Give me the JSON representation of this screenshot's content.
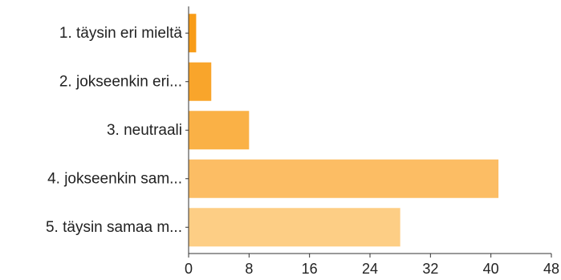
{
  "chart_data": {
    "type": "bar",
    "orientation": "horizontal",
    "categories": [
      "1. täysin eri mieltä",
      "2. jokseenkin eri...",
      "3. neutraali",
      "4. jokseenkin sam...",
      "5. täysin samaa m..."
    ],
    "values": [
      1,
      3,
      8,
      41,
      28
    ],
    "xlim": [
      0,
      48
    ],
    "xticks": [
      "0",
      "8",
      "16",
      "24",
      "32",
      "40",
      "48"
    ],
    "xlabel": "",
    "ylabel": "",
    "title": "",
    "grid": false,
    "colors": [
      "#f89c17",
      "#f9a52b",
      "#fab146",
      "#fcbd64",
      "#fdce85"
    ]
  }
}
